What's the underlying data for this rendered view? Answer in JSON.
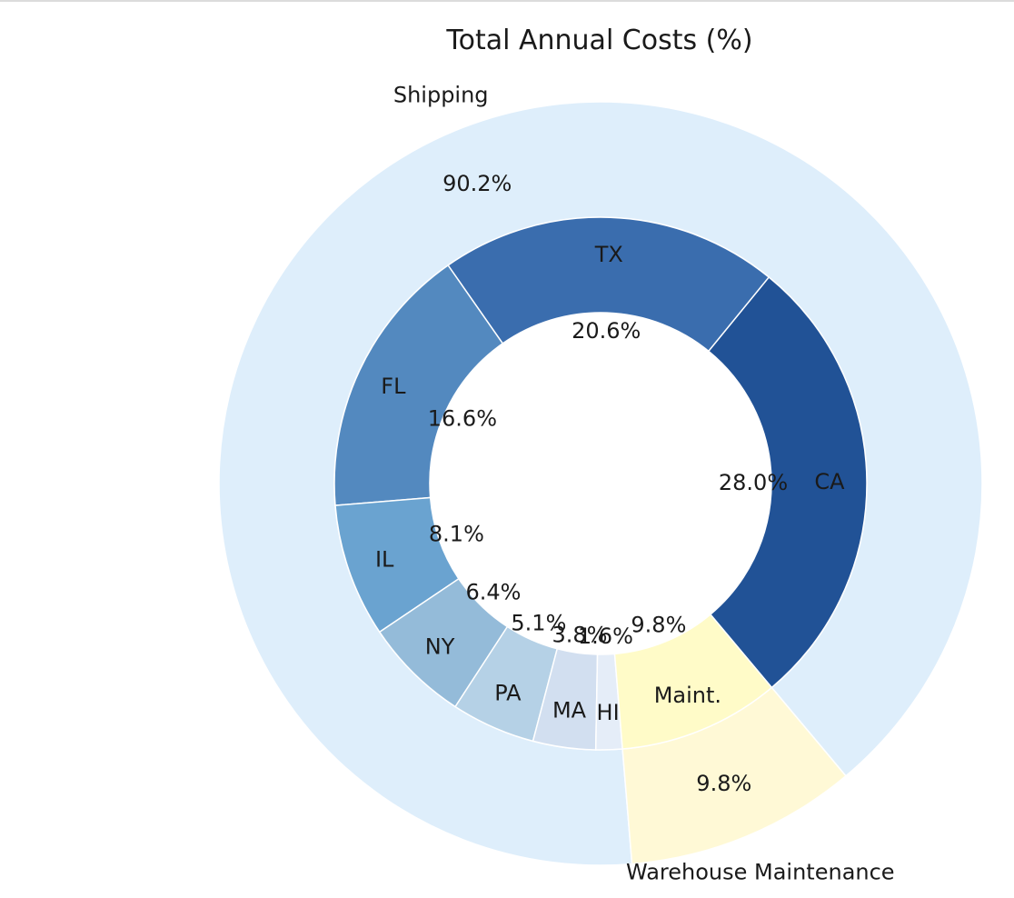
{
  "chart_data": {
    "type": "pie",
    "title": "Total Annual Costs (%)",
    "outer": {
      "categories": [
        "Shipping",
        "Warehouse Maintenance"
      ],
      "values": [
        90.2,
        9.8
      ],
      "value_labels": [
        "90.2%",
        "9.8%"
      ],
      "colors": [
        "#deeefb",
        "#fff9d6"
      ]
    },
    "inner": {
      "categories": [
        "CA",
        "TX",
        "FL",
        "IL",
        "NY",
        "PA",
        "MA",
        "HI",
        "Maint."
      ],
      "values": [
        28.0,
        20.6,
        16.6,
        8.1,
        6.4,
        5.1,
        3.8,
        1.6,
        9.8
      ],
      "value_labels": [
        "28.0%",
        "20.6%",
        "16.6%",
        "8.1%",
        "6.4%",
        "5.1%",
        "3.8%",
        "1.6%",
        "9.8%"
      ],
      "colors": [
        "#215296",
        "#3a6dae",
        "#5389bf",
        "#6aa3d0",
        "#94bbd9",
        "#b5d1e6",
        "#d2dff0",
        "#e5edf8",
        "#fffbc8"
      ]
    }
  }
}
